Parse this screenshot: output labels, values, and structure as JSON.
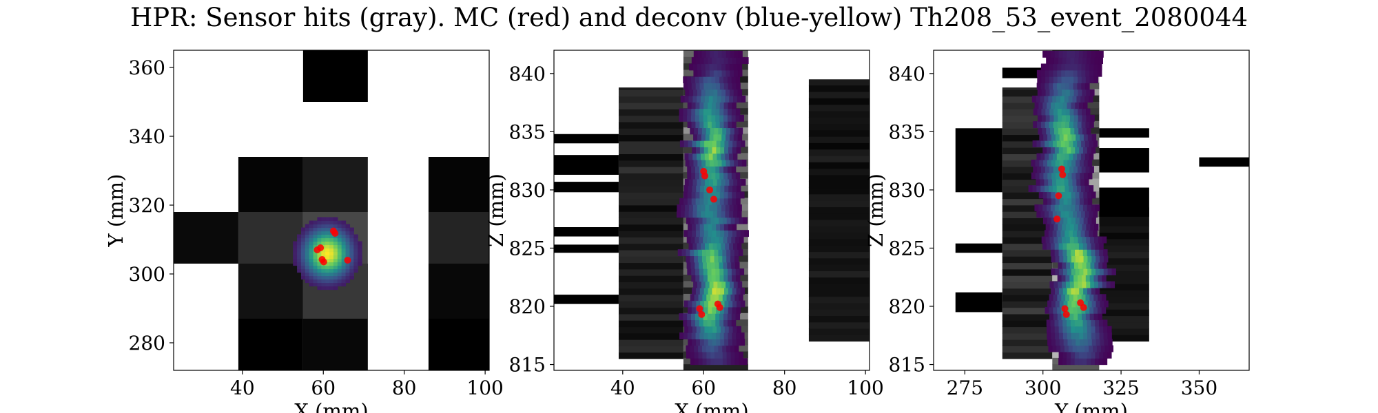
{
  "title": "HPR: Sensor hits (gray). MC (red) and deconv (blue-yellow) Th208_53_event_2080044",
  "colors": {
    "mc": "#ff0000",
    "deconv_map": [
      "#440154",
      "#3b528b",
      "#21918c",
      "#5ec962",
      "#fde725"
    ],
    "sensor_map": [
      "#000000",
      "#ffffff"
    ],
    "background": "#ffffff"
  },
  "chart_data": [
    {
      "type": "heatmap",
      "name": "xy-projection",
      "xlabel": "X (mm)",
      "ylabel": "Y (mm)",
      "xlim": [
        23,
        101
      ],
      "ylim": [
        272,
        365
      ],
      "xticks": [
        40,
        60,
        80,
        100
      ],
      "yticks": [
        280,
        300,
        320,
        340,
        360
      ],
      "grid": false,
      "sensor_hits": [
        {
          "x": [
            55,
            71
          ],
          "y": [
            350,
            366
          ],
          "v": 0.0
        },
        {
          "x": [
            39,
            55
          ],
          "y": [
            318,
            334
          ],
          "v": 0.02
        },
        {
          "x": [
            55,
            71
          ],
          "y": [
            318,
            334
          ],
          "v": 0.1
        },
        {
          "x": [
            86,
            102
          ],
          "y": [
            318,
            334
          ],
          "v": 0.02
        },
        {
          "x": [
            23,
            39
          ],
          "y": [
            303,
            318
          ],
          "v": 0.04
        },
        {
          "x": [
            39,
            55
          ],
          "y": [
            303,
            318
          ],
          "v": 0.18
        },
        {
          "x": [
            55,
            71
          ],
          "y": [
            303,
            318
          ],
          "v": 0.28
        },
        {
          "x": [
            86,
            102
          ],
          "y": [
            303,
            318
          ],
          "v": 0.14
        },
        {
          "x": [
            39,
            55
          ],
          "y": [
            287,
            303
          ],
          "v": 0.07
        },
        {
          "x": [
            55,
            71
          ],
          "y": [
            287,
            303
          ],
          "v": 0.14
        },
        {
          "x": [
            86,
            102
          ],
          "y": [
            287,
            303
          ],
          "v": 0.03
        },
        {
          "x": [
            55,
            71
          ],
          "y": [
            287,
            303
          ],
          "v": 0.22
        },
        {
          "x": [
            39,
            55
          ],
          "y": [
            272,
            287
          ],
          "v": 0.0
        },
        {
          "x": [
            55,
            71
          ],
          "y": [
            272,
            287
          ],
          "v": 0.03
        },
        {
          "x": [
            86,
            102
          ],
          "y": [
            272,
            287
          ],
          "v": 0.0
        }
      ],
      "deconv": [
        {
          "cx": 61,
          "cy": 306,
          "r": 10.5,
          "peak": 1.0,
          "shape": "blob"
        }
      ],
      "mc_points": [
        {
          "x": 58.5,
          "y": 307
        },
        {
          "x": 59.3,
          "y": 307.6
        },
        {
          "x": 62.5,
          "y": 312.5
        },
        {
          "x": 62.9,
          "y": 311.8
        },
        {
          "x": 59.7,
          "y": 304.2
        },
        {
          "x": 60.1,
          "y": 303.5
        },
        {
          "x": 66,
          "y": 304
        }
      ]
    },
    {
      "type": "heatmap",
      "name": "xz-projection",
      "xlabel": "X (mm)",
      "ylabel": "Z (mm)",
      "xlim": [
        23,
        101
      ],
      "ylim": [
        814.5,
        842
      ],
      "xticks": [
        40,
        60,
        80,
        100
      ],
      "yticks": [
        815,
        820,
        825,
        830,
        835,
        840
      ],
      "grid": false,
      "sensor_columns": [
        {
          "x": [
            39,
            55
          ],
          "z": [
            815.5,
            838.8
          ],
          "base": 0.12
        },
        {
          "x": [
            55,
            71
          ],
          "z": [
            814.5,
            842
          ],
          "base": 0.35
        },
        {
          "x": [
            86,
            102
          ],
          "z": [
            817,
            839.5
          ],
          "base": 0.08
        }
      ],
      "sensor_bars": [
        {
          "x": [
            23,
            39
          ],
          "z": [
            834,
            834.8
          ]
        },
        {
          "x": [
            23,
            39
          ],
          "z": [
            831.3,
            833
          ]
        },
        {
          "x": [
            23,
            39
          ],
          "z": [
            829.8,
            830.7
          ]
        },
        {
          "x": [
            23,
            39
          ],
          "z": [
            826,
            826.8
          ]
        },
        {
          "x": [
            23,
            39
          ],
          "z": [
            824.6,
            825.3
          ]
        },
        {
          "x": [
            23,
            39
          ],
          "z": [
            820.2,
            821
          ]
        }
      ],
      "deconv_track": {
        "z": [
          815.0,
          816.5,
          818.0,
          819.5,
          821.0,
          822.5,
          824.0,
          825.5,
          827.0,
          828.5,
          830.0,
          831.5,
          833.0,
          834.5,
          836.0,
          837.5,
          839.0,
          840.5
        ],
        "center": [
          63,
          62,
          61.5,
          62,
          63,
          62.5,
          61.5,
          62,
          62.5,
          61,
          62.5,
          61.5,
          62.5,
          62.5,
          61.5,
          61.5,
          62,
          63
        ],
        "peak": [
          0.15,
          0.3,
          0.6,
          0.8,
          1.0,
          0.75,
          0.8,
          0.5,
          0.45,
          0.45,
          0.55,
          0.6,
          0.85,
          0.7,
          0.55,
          0.45,
          0.3,
          0.1
        ]
      },
      "mc_points": [
        {
          "x": 59,
          "z": 819.8
        },
        {
          "x": 59.5,
          "z": 819.3
        },
        {
          "x": 63.5,
          "z": 820.2
        },
        {
          "x": 64,
          "z": 819.9
        },
        {
          "x": 60,
          "z": 831.6
        },
        {
          "x": 60.3,
          "z": 831.2
        },
        {
          "x": 61.5,
          "z": 830
        },
        {
          "x": 62.5,
          "z": 829.2
        }
      ]
    },
    {
      "type": "heatmap",
      "name": "yz-projection",
      "xlabel": "Y (mm)",
      "ylabel": "Z (mm)",
      "xlim": [
        265,
        366
      ],
      "ylim": [
        814.5,
        842
      ],
      "xticks": [
        275,
        300,
        325,
        350
      ],
      "yticks": [
        815,
        820,
        825,
        830,
        835,
        840
      ],
      "grid": false,
      "sensor_columns": [
        {
          "x": [
            287,
            303
          ],
          "z": [
            815.5,
            838.8
          ],
          "base": 0.15
        },
        {
          "x": [
            303,
            318
          ],
          "z": [
            814.5,
            842
          ],
          "base": 0.45
        },
        {
          "x": [
            318,
            334
          ],
          "z": [
            817,
            828.5
          ],
          "base": 0.08
        }
      ],
      "sensor_bars": [
        {
          "x": [
            272,
            287
          ],
          "z": [
            829.8,
            835.3
          ]
        },
        {
          "x": [
            272,
            287
          ],
          "z": [
            824.6,
            825.4
          ]
        },
        {
          "x": [
            272,
            287
          ],
          "z": [
            819.5,
            821.2
          ]
        },
        {
          "x": [
            287,
            303
          ],
          "z": [
            839.6,
            840.5
          ]
        },
        {
          "x": [
            318,
            334
          ],
          "z": [
            834.5,
            835.3
          ]
        },
        {
          "x": [
            318,
            334
          ],
          "z": [
            831.5,
            833.6
          ]
        },
        {
          "x": [
            318,
            334
          ],
          "z": [
            827.7,
            830.2
          ]
        },
        {
          "x": [
            350,
            366
          ],
          "z": [
            832,
            832.8
          ]
        }
      ],
      "deconv_track": {
        "z": [
          815.0,
          816.5,
          818.0,
          819.5,
          821.0,
          822.5,
          824.0,
          825.5,
          827.0,
          828.5,
          830.0,
          831.5,
          833.0,
          834.5,
          836.0,
          837.5,
          839.0,
          840.5
        ],
        "center": [
          313,
          312,
          311,
          309.5,
          310.5,
          312.5,
          311,
          309,
          308,
          307,
          306,
          306.5,
          307,
          307,
          306,
          306,
          306.5,
          309
        ],
        "peak": [
          0.15,
          0.35,
          0.55,
          0.75,
          0.9,
          0.8,
          0.95,
          0.55,
          0.5,
          0.45,
          0.6,
          0.5,
          0.7,
          0.85,
          0.55,
          0.45,
          0.3,
          0.1
        ]
      },
      "mc_points": [
        {
          "x": 307,
          "z": 819.8
        },
        {
          "x": 307.5,
          "z": 819.3
        },
        {
          "x": 312,
          "z": 820.3
        },
        {
          "x": 313,
          "z": 819.9
        },
        {
          "x": 306,
          "z": 831.8
        },
        {
          "x": 306.3,
          "z": 831.3
        },
        {
          "x": 305,
          "z": 829.5
        },
        {
          "x": 304.5,
          "z": 827.5
        }
      ]
    }
  ]
}
